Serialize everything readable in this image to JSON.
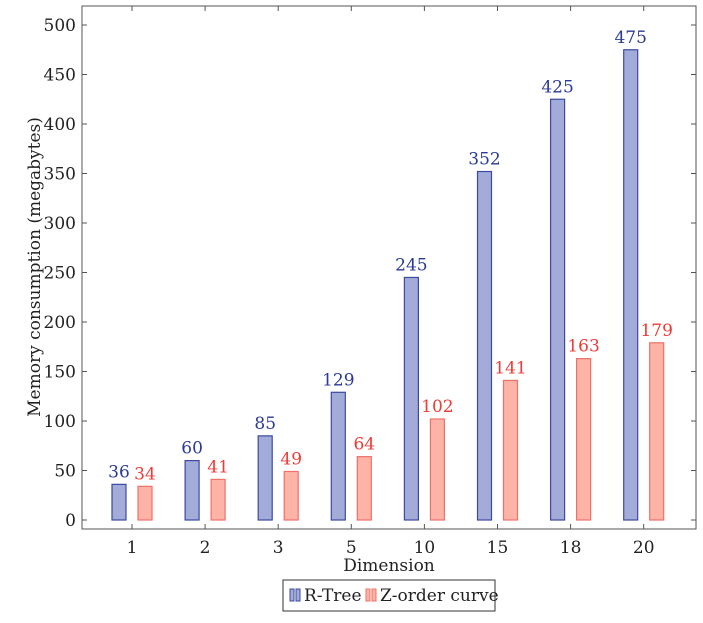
{
  "chart_data": {
    "type": "bar",
    "title": "",
    "xlabel": "Dimension",
    "ylabel": "Memory consumption (megabytes)",
    "categories": [
      "1",
      "2",
      "3",
      "5",
      "10",
      "15",
      "18",
      "20"
    ],
    "ylim": [
      0,
      520
    ],
    "yticks": [
      0,
      50,
      100,
      150,
      200,
      250,
      300,
      350,
      400,
      450,
      500
    ],
    "grid": false,
    "legend_position": "bottom-center",
    "series": [
      {
        "name": "R-Tree",
        "values": [
          36,
          60,
          85,
          129,
          245,
          352,
          425,
          475
        ],
        "fill": "#a3acd8",
        "stroke": "#3b4aa0",
        "label_color": "#2b3a93"
      },
      {
        "name": "Z-order curve",
        "values": [
          34,
          41,
          49,
          64,
          102,
          141,
          163,
          179
        ],
        "fill": "#fdb4a6",
        "stroke": "#f0706a",
        "label_color": "#ee3b36"
      }
    ]
  }
}
